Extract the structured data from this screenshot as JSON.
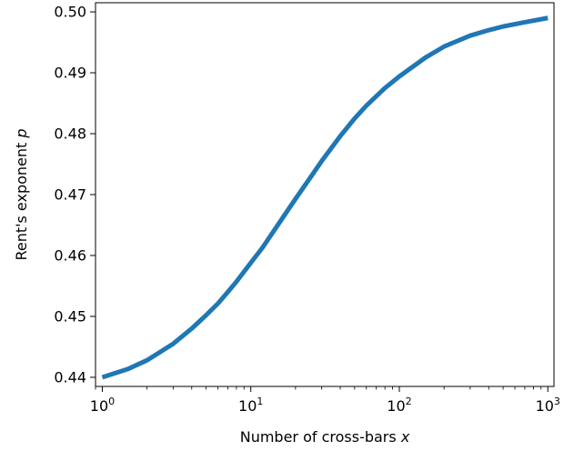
{
  "chart_data": {
    "type": "line",
    "title": "",
    "xlabel": "Number of cross-bars",
    "xlabel_var": "x",
    "ylabel": "Rent's exponent",
    "ylabel_var": "p",
    "xscale": "log",
    "xlim": [
      0.9,
      1100
    ],
    "ylim": [
      0.4385,
      0.5015
    ],
    "grid": false,
    "legend": "none",
    "color": "#1f77b4",
    "x_ticks": [
      {
        "value": 1,
        "base": "10",
        "exp": "0"
      },
      {
        "value": 10,
        "base": "10",
        "exp": "1"
      },
      {
        "value": 100,
        "base": "10",
        "exp": "2"
      },
      {
        "value": 1000,
        "base": "10",
        "exp": "3"
      }
    ],
    "y_ticks": [
      {
        "value": 0.44,
        "label": "0.44"
      },
      {
        "value": 0.45,
        "label": "0.45"
      },
      {
        "value": 0.46,
        "label": "0.46"
      },
      {
        "value": 0.47,
        "label": "0.47"
      },
      {
        "value": 0.48,
        "label": "0.48"
      },
      {
        "value": 0.49,
        "label": "0.49"
      },
      {
        "value": 0.5,
        "label": "0.50"
      }
    ],
    "series": [
      {
        "x": [
          1,
          1.5,
          2,
          3,
          4,
          5,
          6,
          7,
          8,
          10,
          12,
          15,
          20,
          25,
          30,
          40,
          50,
          60,
          80,
          100,
          150,
          200,
          300,
          400,
          500,
          700,
          1000
        ],
        "y": [
          0.44,
          0.4414,
          0.4428,
          0.4455,
          0.448,
          0.4502,
          0.4521,
          0.454,
          0.4557,
          0.4588,
          0.4613,
          0.4648,
          0.4693,
          0.4727,
          0.4755,
          0.4796,
          0.4825,
          0.4846,
          0.4875,
          0.4894,
          0.4925,
          0.4943,
          0.4961,
          0.497,
          0.4976,
          0.4983,
          0.499
        ]
      }
    ]
  }
}
